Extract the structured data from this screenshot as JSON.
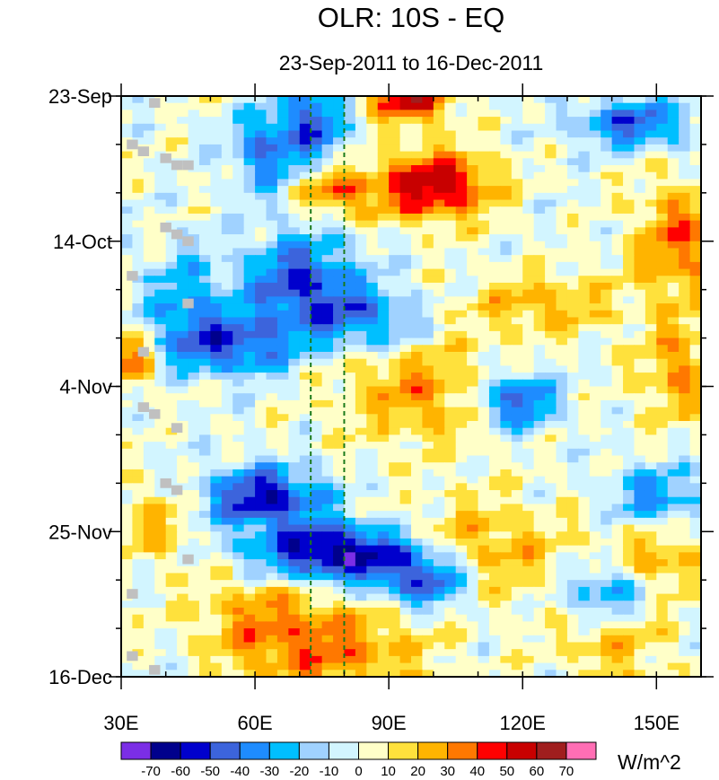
{
  "chart_data": {
    "type": "heatmap",
    "title": "OLR: 10S - EQ",
    "subtitle": "23-Sep-2011 to 16-Dec-2011",
    "x_axis": {
      "range": [
        30,
        160
      ],
      "ticks": [
        {
          "value": 30,
          "label": "30E"
        },
        {
          "value": 60,
          "label": "60E"
        },
        {
          "value": 90,
          "label": "90E"
        },
        {
          "value": 120,
          "label": "120E"
        },
        {
          "value": 150,
          "label": "150E"
        }
      ],
      "minor_step": 10
    },
    "y_axis": {
      "range_days": [
        0,
        84
      ],
      "direction": "time-down",
      "ticks": [
        {
          "day": 0,
          "label": "23-Sep"
        },
        {
          "day": 21,
          "label": "14-Oct"
        },
        {
          "day": 42,
          "label": "4-Nov"
        },
        {
          "day": 63,
          "label": "25-Nov"
        },
        {
          "day": 84,
          "label": "16-Dec"
        }
      ],
      "minor_step_days": 7
    },
    "reference_lines": [
      {
        "lon": 72.5,
        "style": "dashed",
        "color": "#1a7a1a"
      },
      {
        "lon": 80,
        "style": "dashed",
        "color": "#1a7a1a"
      }
    ],
    "colorbar": {
      "units": "W/m^2",
      "levels": [
        -70,
        -60,
        -50,
        -40,
        -30,
        -20,
        -10,
        0,
        10,
        20,
        30,
        40,
        50,
        60,
        70
      ],
      "colors": [
        "#7b2ee6",
        "#00008c",
        "#0000cd",
        "#3c64dc",
        "#1e8cff",
        "#00bfff",
        "#a0d2ff",
        "#d2f5ff",
        "#ffffc8",
        "#ffe13c",
        "#ffb400",
        "#ff7800",
        "#ff0000",
        "#c80000",
        "#a01e1e",
        "#ff6eb4"
      ]
    },
    "grid": {
      "lon_step": 2.5,
      "lon_start": 30,
      "lon_end": 160,
      "day_step": 1
    },
    "missing_color": "#c0c0c0",
    "anomaly_features": [
      {
        "lon": 95,
        "day": 1,
        "amp": 55,
        "slon": 6,
        "sday": 2
      },
      {
        "lon": 100,
        "day": 13,
        "amp": 58,
        "slon": 9,
        "sday": 3.5
      },
      {
        "lon": 78,
        "day": 14,
        "amp": 35,
        "slon": 6,
        "sday": 2.5
      },
      {
        "lon": 100,
        "day": 43,
        "amp": 30,
        "slon": 14,
        "sday": 5
      },
      {
        "lon": 78,
        "day": 80,
        "amp": 32,
        "slon": 14,
        "sday": 5
      },
      {
        "lon": 60,
        "day": 75,
        "amp": 22,
        "slon": 10,
        "sday": 5
      },
      {
        "lon": 110,
        "day": 66,
        "amp": 28,
        "slon": 14,
        "sday": 5
      },
      {
        "lon": 155,
        "day": 21,
        "amp": 35,
        "slon": 7,
        "sday": 6
      },
      {
        "lon": 155,
        "day": 40,
        "amp": 30,
        "slon": 6,
        "sday": 5
      },
      {
        "lon": 150,
        "day": 68,
        "amp": 30,
        "slon": 7,
        "sday": 4
      },
      {
        "lon": 32,
        "day": 38,
        "amp": 35,
        "slon": 4,
        "sday": 3
      },
      {
        "lon": 140,
        "day": 78,
        "amp": 22,
        "slon": 9,
        "sday": 5
      },
      {
        "lon": 125,
        "day": 30,
        "amp": 24,
        "slon": 12,
        "sday": 3
      },
      {
        "lon": 38,
        "day": 62,
        "amp": 20,
        "slon": 6,
        "sday": 4
      },
      {
        "lon": 62,
        "day": 8,
        "amp": -40,
        "slon": 5,
        "sday": 4
      },
      {
        "lon": 73,
        "day": 4,
        "amp": -45,
        "slon": 5,
        "sday": 4
      },
      {
        "lon": 145,
        "day": 4,
        "amp": -45,
        "slon": 9,
        "sday": 2.5
      },
      {
        "lon": 70,
        "day": 27,
        "amp": -50,
        "slon": 9,
        "sday": 5
      },
      {
        "lon": 55,
        "day": 36,
        "amp": -45,
        "slon": 10,
        "sday": 3
      },
      {
        "lon": 118,
        "day": 44,
        "amp": -55,
        "slon": 7,
        "sday": 3
      },
      {
        "lon": 62,
        "day": 58,
        "amp": -60,
        "slon": 9,
        "sday": 3
      },
      {
        "lon": 78,
        "day": 66,
        "amp": -70,
        "slon": 13,
        "sday": 3
      },
      {
        "lon": 98,
        "day": 70,
        "amp": -55,
        "slon": 8,
        "sday": 3
      },
      {
        "lon": 140,
        "day": 72,
        "amp": -45,
        "slon": 8,
        "sday": 3
      },
      {
        "lon": 150,
        "day": 58,
        "amp": -35,
        "slon": 7,
        "sday": 3
      },
      {
        "lon": 85,
        "day": 32,
        "amp": -35,
        "slon": 8,
        "sday": 3
      },
      {
        "lon": 44,
        "day": 30,
        "amp": -30,
        "slon": 6,
        "sday": 5
      }
    ],
    "missing_cells": [
      {
        "lon": 37.5,
        "day": 1
      },
      {
        "lon": 32.5,
        "day": 7
      },
      {
        "lon": 35,
        "day": 8
      },
      {
        "lon": 40,
        "day": 9
      },
      {
        "lon": 42.5,
        "day": 10
      },
      {
        "lon": 45,
        "day": 10
      },
      {
        "lon": 40,
        "day": 19
      },
      {
        "lon": 42.5,
        "day": 20
      },
      {
        "lon": 45,
        "day": 21
      },
      {
        "lon": 32.5,
        "day": 26
      },
      {
        "lon": 45,
        "day": 30
      },
      {
        "lon": 35,
        "day": 37
      },
      {
        "lon": 35,
        "day": 45
      },
      {
        "lon": 37.5,
        "day": 46
      },
      {
        "lon": 42.5,
        "day": 48
      },
      {
        "lon": 40,
        "day": 56
      },
      {
        "lon": 42.5,
        "day": 57
      },
      {
        "lon": 45,
        "day": 67
      },
      {
        "lon": 32.5,
        "day": 72
      },
      {
        "lon": 32.5,
        "day": 81
      },
      {
        "lon": 37.5,
        "day": 83
      }
    ]
  }
}
